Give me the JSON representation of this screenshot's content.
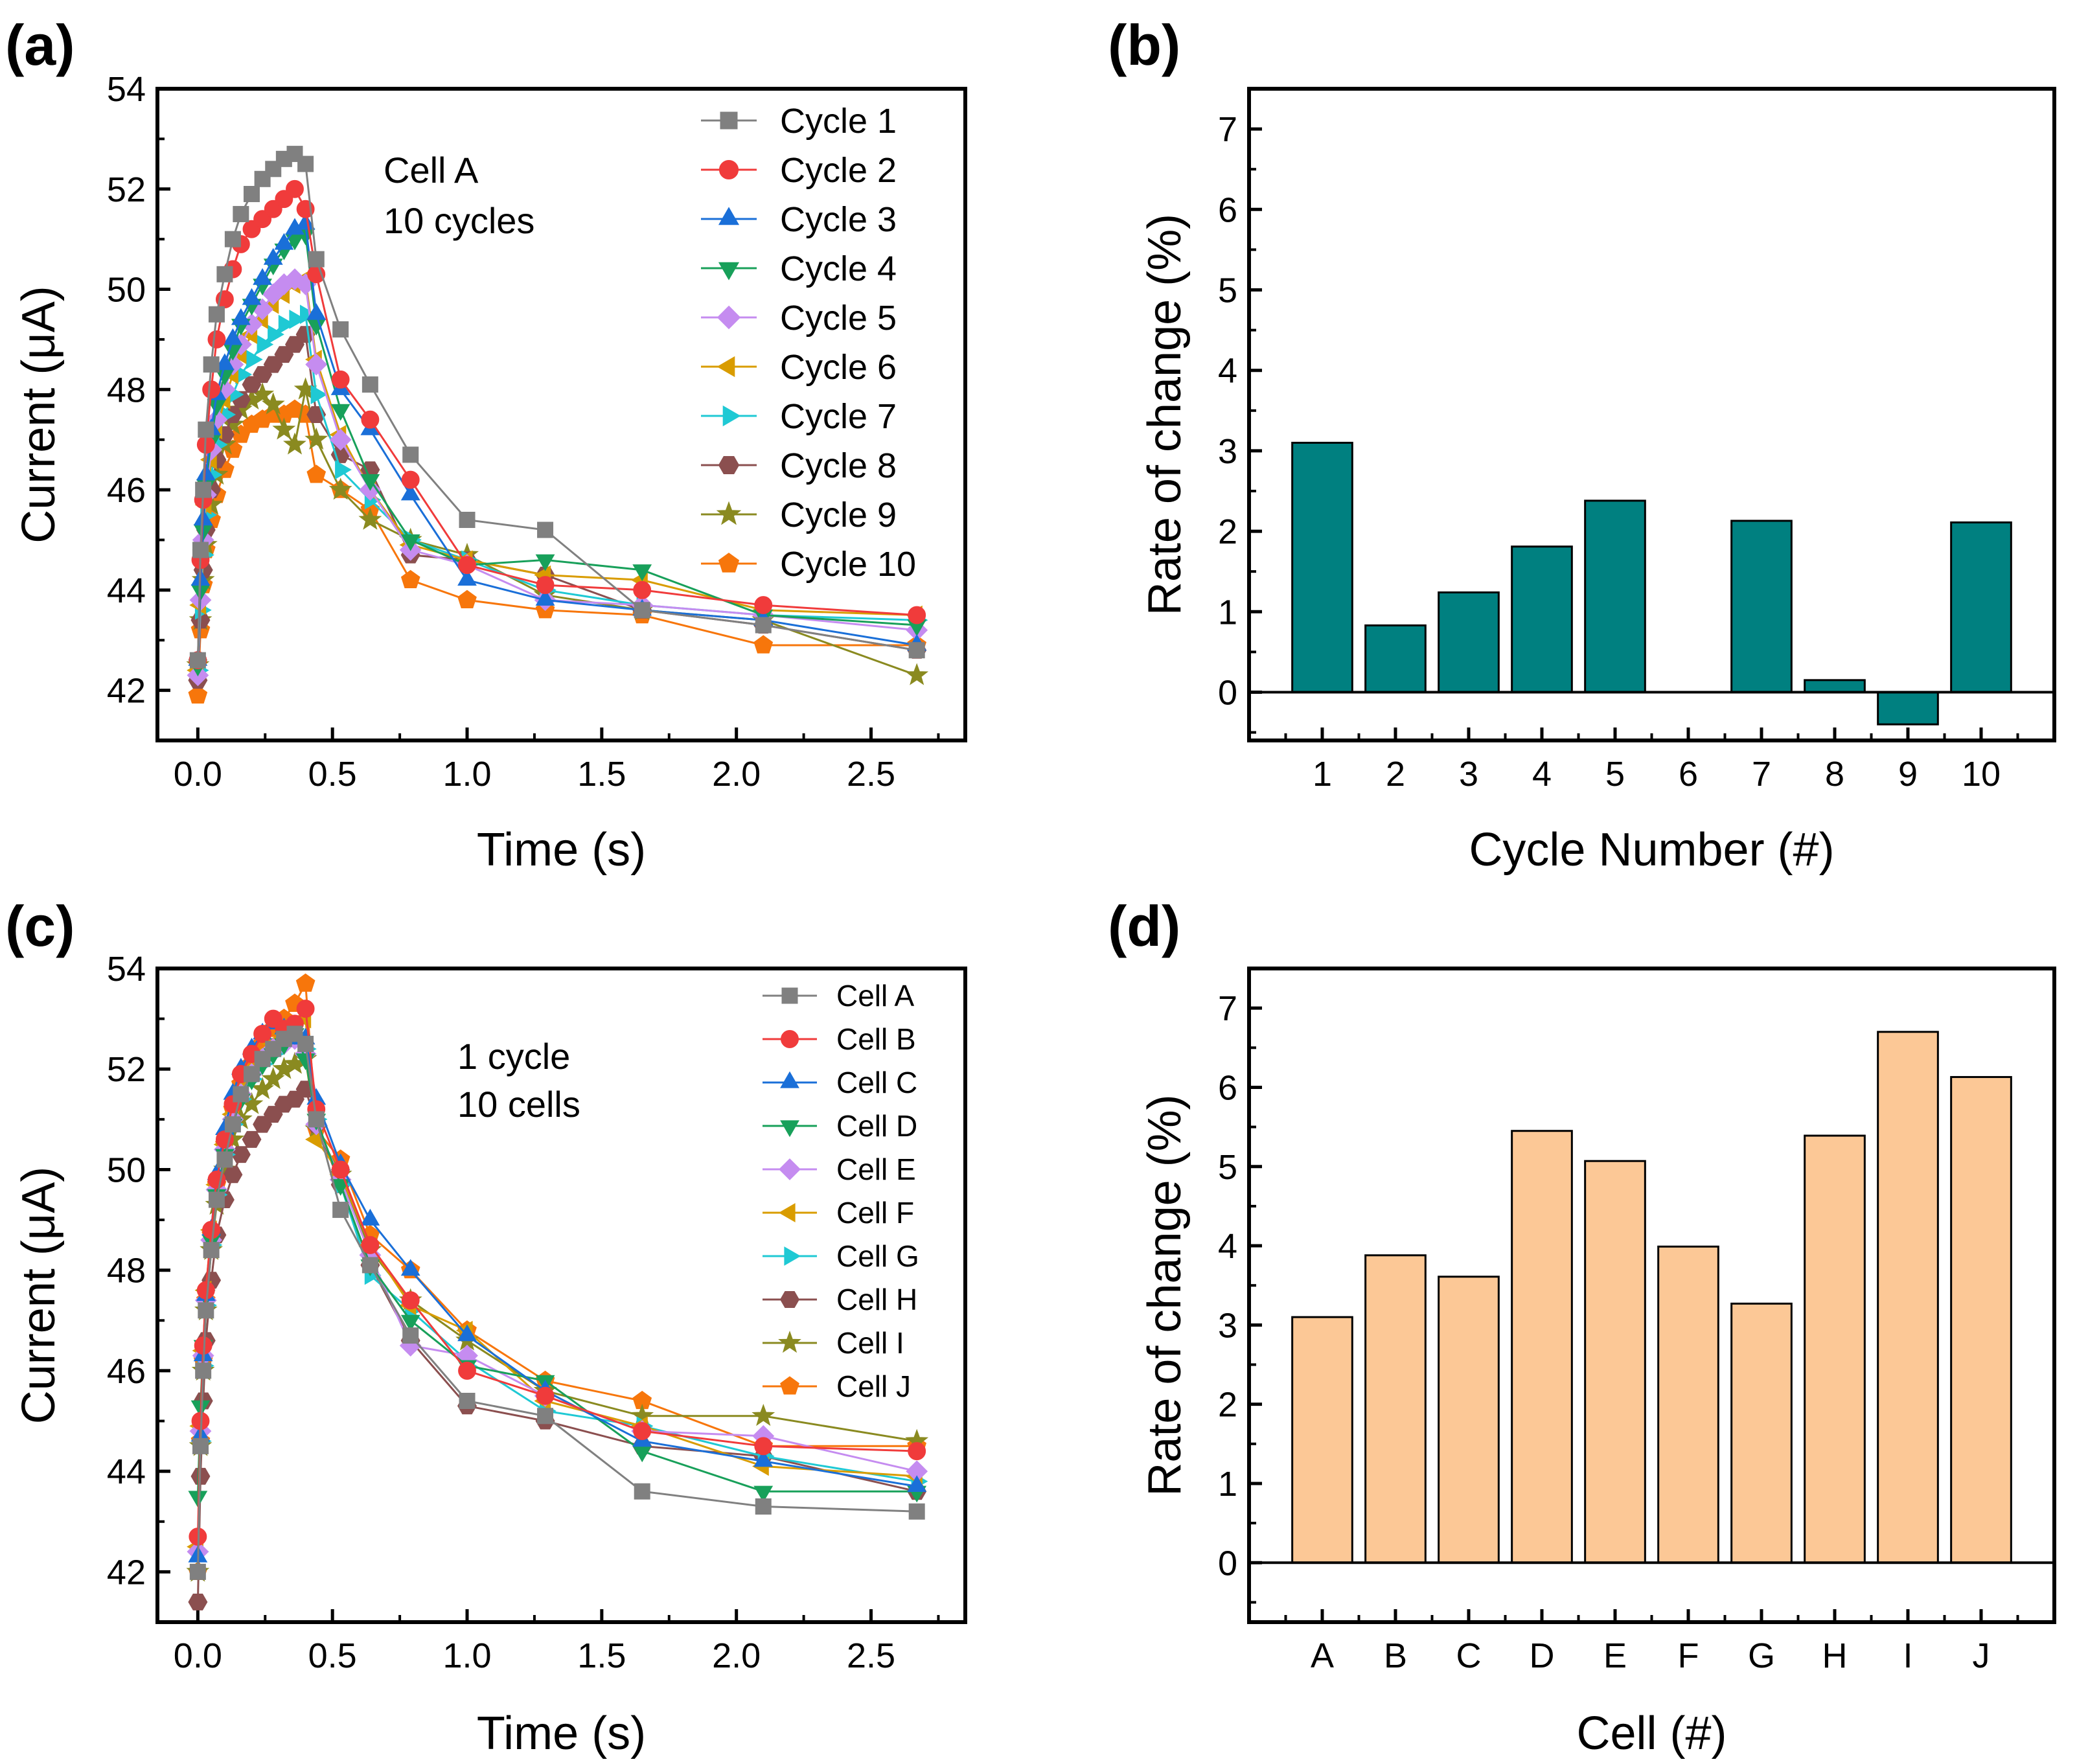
{
  "chart_data": [
    {
      "panel": "(a)",
      "type": "line",
      "xlabel": "Time (s)",
      "ylabel": "Current (μA)",
      "xlim": [
        -0.15,
        2.85
      ],
      "ylim": [
        41.0,
        54.0
      ],
      "xticks": [
        "0.0",
        "0.5",
        "1.0",
        "1.5",
        "2.0",
        "2.5"
      ],
      "yticks": [
        "42",
        "44",
        "46",
        "48",
        "50",
        "52",
        "54"
      ],
      "annotation": [
        "Cell A",
        "10 cycles"
      ],
      "legend_position": "top-right",
      "x": [
        0.0,
        0.01,
        0.02,
        0.03,
        0.05,
        0.07,
        0.1,
        0.13,
        0.16,
        0.2,
        0.24,
        0.28,
        0.32,
        0.36,
        0.4,
        0.44,
        0.53,
        0.64,
        0.79,
        1.0,
        1.29,
        1.65,
        2.1,
        2.67
      ],
      "series": [
        {
          "name": "Cycle 1",
          "color": "#808080",
          "marker": "square",
          "values": [
            42.6,
            44.8,
            46.0,
            47.2,
            48.5,
            49.5,
            50.3,
            51.0,
            51.5,
            51.9,
            52.2,
            52.4,
            52.6,
            52.7,
            52.5,
            50.6,
            49.2,
            48.1,
            46.7,
            45.4,
            45.2,
            43.6,
            43.3,
            42.8
          ]
        },
        {
          "name": "Cycle 2",
          "color": "#f03b3b",
          "marker": "circle",
          "values": [
            42.6,
            44.6,
            45.8,
            46.9,
            48.0,
            49.0,
            49.8,
            50.4,
            50.9,
            51.2,
            51.4,
            51.6,
            51.8,
            52.0,
            51.6,
            50.3,
            48.2,
            47.4,
            46.2,
            44.5,
            44.1,
            44.0,
            43.7,
            43.5
          ]
        },
        {
          "name": "Cycle 3",
          "color": "#1a6fd8",
          "marker": "triangle-up",
          "values": [
            42.6,
            44.2,
            45.4,
            46.3,
            47.2,
            47.9,
            48.5,
            49.0,
            49.4,
            49.8,
            50.2,
            50.6,
            50.9,
            51.2,
            51.3,
            49.5,
            48.0,
            47.2,
            45.9,
            44.2,
            43.8,
            43.6,
            43.4,
            42.9
          ]
        },
        {
          "name": "Cycle 4",
          "color": "#18a05a",
          "marker": "triangle-down",
          "values": [
            42.5,
            44.0,
            45.2,
            46.1,
            47.0,
            47.7,
            48.3,
            48.8,
            49.3,
            49.7,
            50.1,
            50.5,
            50.8,
            51.0,
            51.1,
            49.3,
            47.6,
            46.2,
            45.0,
            44.5,
            44.6,
            44.4,
            43.5,
            43.3
          ]
        },
        {
          "name": "Cycle 5",
          "color": "#c58cf0",
          "marker": "diamond",
          "values": [
            42.3,
            43.8,
            45.0,
            45.9,
            46.8,
            47.4,
            48.0,
            48.5,
            48.9,
            49.3,
            49.6,
            49.9,
            50.1,
            50.2,
            50.1,
            48.5,
            47.0,
            46.0,
            44.8,
            44.5,
            43.8,
            43.7,
            43.5,
            43.2
          ]
        },
        {
          "name": "Cycle 6",
          "color": "#d99c00",
          "marker": "triangle-left",
          "values": [
            42.4,
            43.7,
            44.8,
            45.7,
            46.6,
            47.2,
            47.8,
            48.3,
            48.7,
            49.1,
            49.4,
            49.7,
            49.9,
            50.1,
            50.2,
            48.6,
            47.1,
            46.0,
            44.9,
            44.6,
            44.3,
            44.2,
            43.6,
            43.5
          ]
        },
        {
          "name": "Cycle 7",
          "color": "#1fc9d4",
          "marker": "triangle-right",
          "values": [
            42.4,
            43.6,
            44.7,
            45.5,
            46.3,
            46.9,
            47.5,
            47.9,
            48.3,
            48.6,
            48.9,
            49.1,
            49.3,
            49.4,
            49.5,
            47.9,
            46.4,
            45.8,
            45.0,
            44.6,
            44.0,
            43.7,
            43.5,
            43.4
          ]
        },
        {
          "name": "Cycle 8",
          "color": "#8b4f4f",
          "marker": "hexagon",
          "values": [
            42.2,
            43.4,
            44.4,
            45.2,
            46.0,
            46.6,
            47.1,
            47.5,
            47.8,
            48.1,
            48.3,
            48.5,
            48.7,
            48.9,
            49.1,
            47.5,
            46.7,
            46.4,
            44.7,
            44.6,
            44.3,
            43.6,
            43.3,
            42.8
          ]
        },
        {
          "name": "Cycle 9",
          "color": "#8a8a20",
          "marker": "star",
          "values": [
            42.5,
            43.4,
            44.2,
            44.9,
            45.7,
            46.3,
            46.9,
            47.3,
            47.6,
            47.8,
            47.9,
            47.7,
            47.2,
            46.9,
            48.0,
            47.0,
            46.0,
            45.4,
            45.0,
            44.7,
            43.9,
            43.6,
            43.4,
            42.3
          ]
        },
        {
          "name": "Cycle 10",
          "color": "#f7760b",
          "marker": "pentagon",
          "values": [
            41.9,
            43.2,
            44.1,
            44.8,
            45.4,
            45.9,
            46.4,
            46.8,
            47.1,
            47.3,
            47.4,
            47.5,
            47.5,
            47.6,
            47.5,
            46.3,
            46.0,
            45.6,
            44.2,
            43.8,
            43.6,
            43.5,
            42.9,
            42.9
          ]
        }
      ]
    },
    {
      "panel": "(b)",
      "type": "bar",
      "xlabel": "Cycle Number (#)",
      "ylabel": "Rate of change (%)",
      "ylim": [
        -0.6,
        7.5
      ],
      "yticks": [
        "0",
        "1",
        "2",
        "3",
        "4",
        "5",
        "6",
        "7"
      ],
      "categories": [
        "1",
        "2",
        "3",
        "4",
        "5",
        "6",
        "7",
        "8",
        "9",
        "10"
      ],
      "values": [
        3.1,
        0.83,
        1.24,
        1.81,
        2.38,
        0.0,
        2.13,
        0.15,
        -0.4,
        2.11
      ],
      "bar_color": "#008080"
    },
    {
      "panel": "(c)",
      "type": "line",
      "xlabel": "Time (s)",
      "ylabel": "Current (μA)",
      "xlim": [
        -0.15,
        2.85
      ],
      "ylim": [
        41.0,
        54.0
      ],
      "xticks": [
        "0.0",
        "0.5",
        "1.0",
        "1.5",
        "2.0",
        "2.5"
      ],
      "yticks": [
        "42",
        "44",
        "46",
        "48",
        "50",
        "52",
        "54"
      ],
      "annotation": [
        "1 cycle",
        "10 cells"
      ],
      "legend_position": "top-right",
      "x": [
        0.0,
        0.01,
        0.02,
        0.03,
        0.05,
        0.07,
        0.1,
        0.13,
        0.16,
        0.2,
        0.24,
        0.28,
        0.32,
        0.36,
        0.4,
        0.44,
        0.53,
        0.64,
        0.79,
        1.0,
        1.29,
        1.65,
        2.1,
        2.67
      ],
      "series": [
        {
          "name": "Cell A",
          "color": "#808080",
          "marker": "square",
          "values": [
            42.0,
            44.5,
            46.0,
            47.2,
            48.4,
            49.4,
            50.2,
            50.9,
            51.5,
            51.9,
            52.2,
            52.4,
            52.6,
            52.7,
            52.5,
            51.0,
            49.2,
            48.1,
            46.7,
            45.4,
            45.1,
            43.6,
            43.3,
            43.2
          ]
        },
        {
          "name": "Cell B",
          "color": "#f03b3b",
          "marker": "circle",
          "values": [
            42.7,
            45.0,
            46.5,
            47.6,
            48.8,
            49.8,
            50.6,
            51.3,
            51.9,
            52.3,
            52.7,
            53.0,
            52.8,
            52.9,
            53.2,
            51.2,
            50.0,
            48.5,
            47.4,
            46.0,
            45.5,
            44.8,
            44.5,
            44.4
          ]
        },
        {
          "name": "Cell C",
          "color": "#1a6fd8",
          "marker": "triangle-up",
          "values": [
            42.3,
            44.7,
            46.3,
            47.5,
            48.8,
            49.9,
            50.8,
            51.5,
            52.0,
            52.4,
            52.7,
            52.9,
            52.8,
            52.6,
            52.6,
            51.4,
            50.1,
            49.0,
            48.0,
            46.7,
            45.6,
            44.6,
            44.2,
            43.7
          ]
        },
        {
          "name": "Cell D",
          "color": "#18a05a",
          "marker": "triangle-down",
          "values": [
            43.5,
            45.3,
            46.5,
            47.5,
            48.6,
            49.5,
            50.3,
            50.9,
            51.4,
            51.8,
            52.1,
            52.3,
            52.5,
            52.7,
            52.2,
            51.0,
            49.7,
            48.1,
            47.0,
            46.1,
            45.8,
            44.4,
            43.6,
            43.6
          ]
        },
        {
          "name": "Cell E",
          "color": "#c58cf0",
          "marker": "diamond",
          "values": [
            42.4,
            44.8,
            46.3,
            47.4,
            48.6,
            49.6,
            50.4,
            51.0,
            51.5,
            51.9,
            52.2,
            52.4,
            52.5,
            52.6,
            52.3,
            50.9,
            49.8,
            48.3,
            46.5,
            46.3,
            45.5,
            44.8,
            44.7,
            44.0
          ]
        },
        {
          "name": "Cell F",
          "color": "#d99c00",
          "marker": "triangle-left",
          "values": [
            42.5,
            44.9,
            46.4,
            47.6,
            48.8,
            49.7,
            50.5,
            51.1,
            51.6,
            52.0,
            52.3,
            52.5,
            52.7,
            52.9,
            53.0,
            50.6,
            49.9,
            48.5,
            47.3,
            46.8,
            45.4,
            44.9,
            44.1,
            43.9
          ]
        },
        {
          "name": "Cell G",
          "color": "#1fc9d4",
          "marker": "triangle-right",
          "values": [
            42.4,
            44.6,
            46.1,
            47.3,
            48.5,
            49.5,
            50.3,
            50.9,
            51.4,
            51.8,
            52.1,
            52.3,
            52.5,
            52.6,
            52.4,
            51.0,
            49.7,
            47.9,
            47.2,
            46.2,
            45.2,
            44.9,
            44.3,
            43.8
          ]
        },
        {
          "name": "Cell H",
          "color": "#8b4f4f",
          "marker": "hexagon",
          "values": [
            41.4,
            43.9,
            45.4,
            46.6,
            47.8,
            48.7,
            49.4,
            49.9,
            50.3,
            50.6,
            50.9,
            51.1,
            51.3,
            51.4,
            51.6,
            50.9,
            49.7,
            48.1,
            46.6,
            45.3,
            45.0,
            44.5,
            44.3,
            43.6
          ]
        },
        {
          "name": "Cell I",
          "color": "#8a8a20",
          "marker": "star",
          "values": [
            42.0,
            44.5,
            46.0,
            47.2,
            48.4,
            49.3,
            50.0,
            50.6,
            51.0,
            51.3,
            51.6,
            51.8,
            52.0,
            52.1,
            52.2,
            50.8,
            49.9,
            48.4,
            47.4,
            46.6,
            45.6,
            45.1,
            45.1,
            44.6
          ]
        },
        {
          "name": "Cell J",
          "color": "#f7760b",
          "marker": "pentagon",
          "values": [
            42.0,
            44.6,
            46.2,
            47.4,
            48.7,
            49.7,
            50.5,
            51.2,
            51.7,
            52.1,
            52.5,
            52.8,
            53.0,
            53.3,
            53.7,
            50.8,
            50.2,
            48.7,
            48.0,
            46.8,
            45.8,
            45.4,
            44.5,
            44.5
          ]
        }
      ]
    },
    {
      "panel": "(d)",
      "type": "bar",
      "xlabel": "Cell (#)",
      "ylabel": "Rate of change (%)",
      "ylim": [
        -0.75,
        7.5
      ],
      "yticks": [
        "0",
        "1",
        "2",
        "3",
        "4",
        "5",
        "6",
        "7"
      ],
      "categories": [
        "A",
        "B",
        "C",
        "D",
        "E",
        "F",
        "G",
        "H",
        "I",
        "J"
      ],
      "values": [
        3.1,
        3.88,
        3.61,
        5.45,
        5.07,
        3.99,
        3.27,
        5.39,
        6.7,
        6.13
      ],
      "bar_color": "#fcc896"
    }
  ]
}
